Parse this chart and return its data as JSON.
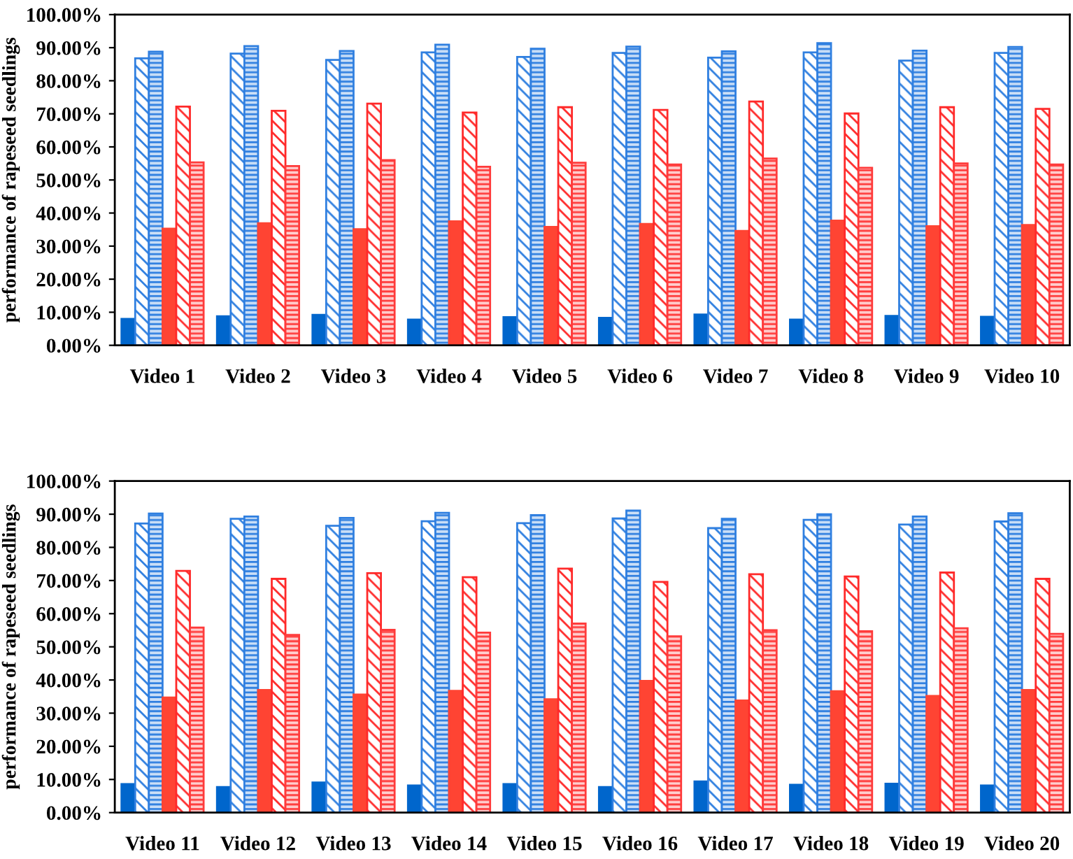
{
  "chart_data": [
    {
      "type": "bar",
      "ylabel": "performance of rapeseed seedlings",
      "categories": [
        "Video 1",
        "Video 2",
        "Video 3",
        "Video 4",
        "Video 5",
        "Video 6",
        "Video 7",
        "Video 8",
        "Video 9",
        "Video 10"
      ],
      "ylim": [
        0,
        100
      ],
      "yticks": [
        {
          "value": 0,
          "label": "0.00%"
        },
        {
          "value": 10,
          "label": "10.00%"
        },
        {
          "value": 20,
          "label": "20.00%"
        },
        {
          "value": 30,
          "label": "30.00%"
        },
        {
          "value": 40,
          "label": "40.00%"
        },
        {
          "value": 50,
          "label": "50.00%"
        },
        {
          "value": 60,
          "label": "60.00%"
        },
        {
          "value": 70,
          "label": "70.00%"
        },
        {
          "value": 80,
          "label": "80.00%"
        },
        {
          "value": 90,
          "label": "90.00%"
        },
        {
          "value": 100,
          "label": "100.00%"
        }
      ],
      "grid": false,
      "legend": false,
      "series": [
        {
          "color": "#0066cc",
          "values": [
            8.0,
            8.8,
            9.2,
            7.8,
            8.5,
            8.3,
            9.3,
            7.8,
            8.9,
            8.6
          ]
        },
        {
          "color": "#2f7fe0",
          "values": [
            86.8,
            88.2,
            86.3,
            88.6,
            87.2,
            88.4,
            87.0,
            88.6,
            86.1,
            88.4
          ]
        },
        {
          "color": "#2f7fe0",
          "values": [
            88.8,
            90.5,
            89.0,
            90.9,
            89.7,
            90.3,
            88.9,
            91.4,
            89.1,
            90.2
          ]
        },
        {
          "color": "#ff4433",
          "values": [
            35.3,
            36.9,
            35.1,
            37.5,
            35.8,
            36.7,
            34.6,
            37.7,
            36.0,
            36.4
          ]
        },
        {
          "color": "#ff2a2a",
          "values": [
            72.2,
            70.9,
            73.1,
            70.4,
            72.0,
            71.2,
            73.7,
            70.1,
            72.0,
            71.5
          ]
        },
        {
          "color": "#ff3b3b",
          "values": [
            55.3,
            54.2,
            56.0,
            54.0,
            55.2,
            54.7,
            56.5,
            53.7,
            55.0,
            54.7
          ]
        }
      ]
    },
    {
      "type": "bar",
      "ylabel": "performance of rapeseed seedlings",
      "categories": [
        "Video 11",
        "Video 12",
        "Video 13",
        "Video 14",
        "Video 15",
        "Video 16",
        "Video 17",
        "Video 18",
        "Video 19",
        "Video 20"
      ],
      "ylim": [
        0,
        100
      ],
      "yticks": [
        {
          "value": 0,
          "label": "0.00%"
        },
        {
          "value": 10,
          "label": "10.00%"
        },
        {
          "value": 20,
          "label": "20.00%"
        },
        {
          "value": 30,
          "label": "30.00%"
        },
        {
          "value": 40,
          "label": "40.00%"
        },
        {
          "value": 50,
          "label": "50.00%"
        },
        {
          "value": 60,
          "label": "60.00%"
        },
        {
          "value": 70,
          "label": "70.00%"
        },
        {
          "value": 80,
          "label": "80.00%"
        },
        {
          "value": 90,
          "label": "90.00%"
        },
        {
          "value": 100,
          "label": "100.00%"
        }
      ],
      "grid": false,
      "legend": false,
      "series": [
        {
          "color": "#0066cc",
          "values": [
            8.6,
            7.7,
            9.1,
            8.2,
            8.6,
            7.7,
            9.4,
            8.4,
            8.7,
            8.2
          ]
        },
        {
          "color": "#2f7fe0",
          "values": [
            87.2,
            88.6,
            86.5,
            87.9,
            87.3,
            88.7,
            85.8,
            88.3,
            86.9,
            87.8
          ]
        },
        {
          "color": "#2f7fe0",
          "values": [
            90.2,
            89.3,
            88.9,
            90.4,
            89.7,
            91.1,
            88.6,
            90.0,
            89.3,
            90.3
          ]
        },
        {
          "color": "#ff4433",
          "values": [
            34.7,
            37.0,
            35.6,
            36.7,
            34.2,
            39.7,
            33.8,
            36.6,
            35.2,
            37.0
          ]
        },
        {
          "color": "#ff2a2a",
          "values": [
            72.9,
            70.5,
            72.2,
            71.0,
            73.6,
            69.6,
            71.9,
            71.2,
            72.4,
            70.5
          ]
        },
        {
          "color": "#ff3b3b",
          "values": [
            55.8,
            53.6,
            55.1,
            54.3,
            57.0,
            53.2,
            55.0,
            54.7,
            55.6,
            53.9
          ]
        }
      ]
    }
  ]
}
